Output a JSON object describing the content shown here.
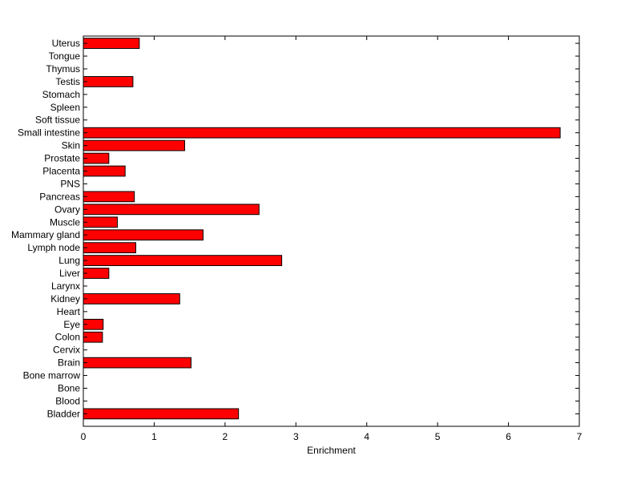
{
  "chart_data": {
    "type": "bar",
    "orientation": "horizontal",
    "title": "",
    "xlabel": "Enrichment",
    "ylabel": "",
    "xlim": [
      0,
      7
    ],
    "xticks": [
      "0",
      "1",
      "2",
      "3",
      "4",
      "5",
      "6",
      "7"
    ],
    "grid": false,
    "bar_color": "#ff0000",
    "categories": [
      "Bladder",
      "Blood",
      "Bone",
      "Bone marrow",
      "Brain",
      "Cervix",
      "Colon",
      "Eye",
      "Heart",
      "Kidney",
      "Larynx",
      "Liver",
      "Lung",
      "Lymph node",
      "Mammary gland",
      "Muscle",
      "Ovary",
      "Pancreas",
      "PNS",
      "Placenta",
      "Prostate",
      "Skin",
      "Small intestine",
      "Soft tissue",
      "Spleen",
      "Stomach",
      "Testis",
      "Thymus",
      "Tongue",
      "Uterus"
    ],
    "values": [
      2.19,
      0,
      0,
      0,
      1.52,
      0,
      0.27,
      0.28,
      0,
      1.36,
      0,
      0.36,
      2.8,
      0.74,
      1.69,
      0.48,
      2.48,
      0.72,
      0,
      0.59,
      0.36,
      1.43,
      6.73,
      0,
      0,
      0,
      0.7,
      0,
      0,
      0.79
    ]
  }
}
